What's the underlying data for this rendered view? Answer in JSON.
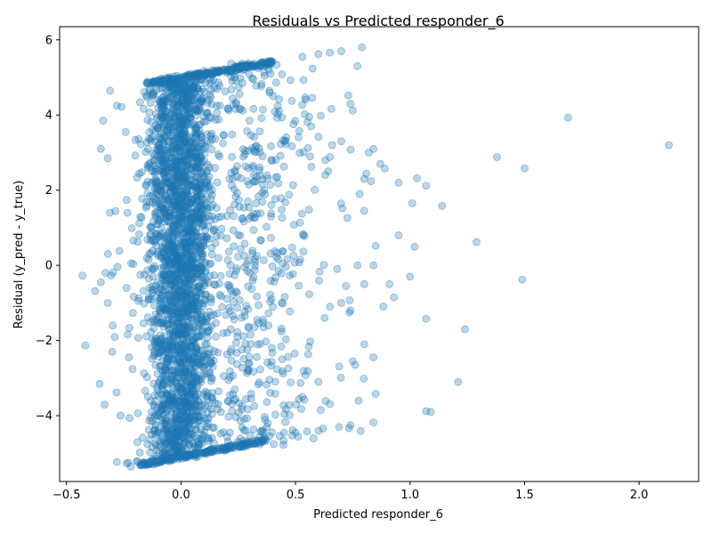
{
  "chart_data": {
    "type": "scatter",
    "title": "Residuals vs Predicted responder_6",
    "xlabel": "Predicted responder_6",
    "ylabel": "Residual (y_pred - y_true)",
    "xlim": [
      -0.53,
      2.26
    ],
    "ylim": [
      -5.75,
      6.35
    ],
    "xticks": [
      -0.5,
      0.0,
      0.5,
      1.0,
      1.5,
      2.0
    ],
    "xtick_labels": [
      "−0.5",
      "0.0",
      "0.5",
      "1.0",
      "1.5",
      "2.0"
    ],
    "yticks": [
      -4,
      -2,
      0,
      2,
      4,
      6
    ],
    "ytick_labels": [
      "−4",
      "−2",
      "0",
      "2",
      "4",
      "6"
    ],
    "grid": false,
    "marker_color": "#1f77b4",
    "marker_alpha": 0.3,
    "outlier_points": [
      [
        -0.43,
        -0.27
      ],
      [
        -0.35,
        -0.45
      ],
      [
        -0.34,
        3.85
      ],
      [
        -0.35,
        3.1
      ],
      [
        -0.31,
        4.65
      ],
      [
        -0.32,
        2.85
      ],
      [
        -0.3,
        -2.3
      ],
      [
        -0.31,
        1.4
      ],
      [
        -0.33,
        -0.2
      ],
      [
        -0.32,
        -1.0
      ],
      [
        -0.23,
        -5.25
      ],
      [
        -0.19,
        -5.22
      ],
      [
        -0.18,
        -4.98
      ],
      [
        -0.26,
        4.22
      ],
      [
        -0.28,
        4.25
      ],
      [
        0.27,
        5.3
      ],
      [
        0.35,
        5.38
      ],
      [
        0.4,
        5.42
      ],
      [
        0.53,
        5.55
      ],
      [
        0.6,
        5.62
      ],
      [
        0.65,
        5.66
      ],
      [
        0.7,
        5.7
      ],
      [
        0.79,
        5.8
      ],
      [
        0.77,
        5.3
      ],
      [
        0.73,
        4.52
      ],
      [
        0.75,
        4.12
      ],
      [
        0.84,
        3.1
      ],
      [
        0.87,
        2.7
      ],
      [
        0.89,
        2.58
      ],
      [
        0.82,
        3.0
      ],
      [
        0.95,
        2.2
      ],
      [
        1.03,
        2.32
      ],
      [
        1.07,
        2.12
      ],
      [
        1.14,
        1.58
      ],
      [
        1.01,
        1.65
      ],
      [
        0.95,
        0.8
      ],
      [
        1.02,
        0.5
      ],
      [
        1.0,
        -0.3
      ],
      [
        0.91,
        -0.5
      ],
      [
        0.93,
        -0.85
      ],
      [
        1.07,
        -1.42
      ],
      [
        1.24,
        -1.7
      ],
      [
        1.21,
        -3.1
      ],
      [
        1.07,
        -3.88
      ],
      [
        1.09,
        -3.9
      ],
      [
        0.85,
        -3.42
      ],
      [
        0.84,
        -4.18
      ],
      [
        0.74,
        -4.25
      ],
      [
        0.69,
        -4.3
      ],
      [
        0.8,
        -2.1
      ],
      [
        0.84,
        -2.45
      ],
      [
        0.75,
        -2.55
      ],
      [
        0.76,
        -2.65
      ],
      [
        1.29,
        0.62
      ],
      [
        1.38,
        2.88
      ],
      [
        1.49,
        -0.38
      ],
      [
        1.5,
        2.58
      ],
      [
        1.69,
        3.93
      ],
      [
        2.13,
        3.2
      ],
      [
        0.85,
        0.52
      ],
      [
        0.8,
        1.45
      ],
      [
        0.8,
        2.3
      ],
      [
        0.78,
        1.9
      ],
      [
        0.83,
        2.24
      ],
      [
        0.65,
        2.88
      ],
      [
        0.6,
        3.42
      ],
      [
        0.56,
        3.95
      ],
      [
        0.54,
        4.02
      ],
      [
        0.7,
        3.3
      ],
      [
        0.74,
        4.3
      ],
      [
        0.66,
        3.2
      ],
      [
        0.63,
        2.8
      ],
      [
        0.77,
        0.0
      ],
      [
        0.84,
        0.0
      ],
      [
        0.8,
        -0.5
      ],
      [
        0.72,
        -0.55
      ],
      [
        0.74,
        -1.2
      ],
      [
        0.7,
        -1.0
      ],
      [
        0.65,
        -1.1
      ],
      [
        0.6,
        -3.1
      ],
      [
        0.55,
        -4.42
      ],
      [
        0.6,
        -4.4
      ],
      [
        0.53,
        -3.5
      ],
      [
        0.5,
        -4.45
      ],
      [
        0.45,
        -4.45
      ]
    ]
  }
}
